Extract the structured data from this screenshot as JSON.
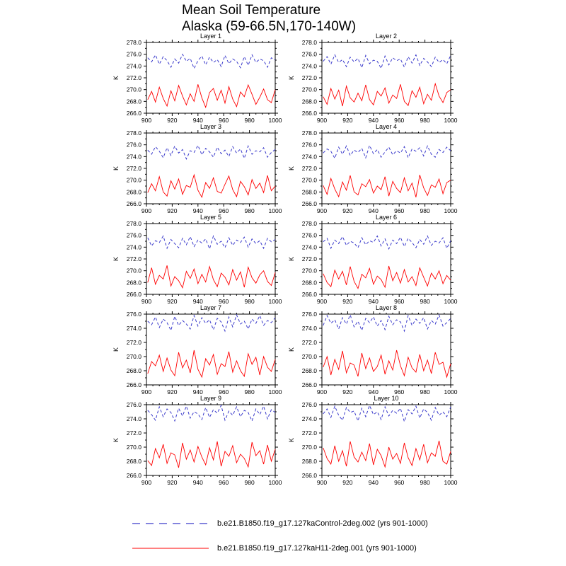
{
  "figure": {
    "title_line1": "Mean Soil Temperature",
    "title_line2": "Alaska (59-66.5N,170-140W)"
  },
  "legend": {
    "items": [
      {
        "label": "b.e21.B1850.f19_g17.127kaControl-2deg.002 (yrs 901-1000)",
        "color": "#3a3acb",
        "style": "dashed"
      },
      {
        "label": "b.e21.B1850.f19_g17.127kaH11-2deg.001 (yrs 901-1000)",
        "color": "#ff0000",
        "style": "solid"
      }
    ]
  },
  "chart_data": {
    "type": "line",
    "title": "Mean Soil Temperature, Alaska (59-66.5N,170-140W)",
    "xlabel": "",
    "ylabel": "K",
    "x_min": 900,
    "x_max": 1000,
    "x_ticks": [
      900,
      920,
      940,
      960,
      980,
      1000
    ],
    "x_minor_step": 5,
    "y_tick_step": 2,
    "y_minor_step": 1,
    "x_start": 901,
    "x_step": 3,
    "grid": false,
    "legend_position": "bottom",
    "series_meta": [
      {
        "key": "control",
        "name": "b.e21.B1850.f19_g17.127kaControl-2deg.002",
        "color": "#3a3acb",
        "dash": "4,3",
        "width": 1
      },
      {
        "key": "h11",
        "name": "b.e21.B1850.f19_g17.127kaH11-2deg.001",
        "color": "#ff0000",
        "dash": "",
        "width": 0.9
      }
    ],
    "panels": [
      {
        "title": "Layer 1",
        "ylim": [
          266,
          278
        ],
        "control": [
          275.4,
          274.7,
          275.9,
          274.3,
          275.6,
          274.9,
          273.8,
          275.2,
          274.5,
          276.0,
          274.8,
          275.3,
          273.6,
          274.9,
          275.7,
          274.2,
          275.5,
          274.6,
          275.1,
          273.9,
          275.8,
          274.4,
          275.2,
          274.8,
          273.7,
          275.6,
          274.1,
          275.9,
          274.6,
          275.2,
          274.9,
          273.8,
          275.4,
          275.0
        ],
        "h11": [
          268.3,
          269.7,
          267.9,
          270.4,
          268.5,
          267.2,
          269.8,
          268.1,
          270.7,
          268.9,
          267.4,
          269.3,
          268.0,
          270.9,
          268.6,
          267.0,
          269.5,
          270.2,
          268.2,
          269.9,
          267.7,
          270.5,
          268.4,
          267.1,
          269.6,
          268.8,
          270.8,
          269.2,
          267.5,
          268.7,
          270.1,
          268.3,
          267.8,
          270.0
        ]
      },
      {
        "title": "Layer 2",
        "ylim": [
          266,
          278
        ],
        "control": [
          274.8,
          275.6,
          274.3,
          275.9,
          274.6,
          275.1,
          273.9,
          275.5,
          274.7,
          275.3,
          273.7,
          275.8,
          274.4,
          275.0,
          274.8,
          273.6,
          275.7,
          274.2,
          275.4,
          274.9,
          275.2,
          273.8,
          275.6,
          274.5,
          275.9,
          274.1,
          275.3,
          274.7,
          273.9,
          275.5,
          274.6,
          275.1,
          274.4,
          275.8
        ],
        "h11": [
          268.8,
          267.5,
          270.2,
          268.4,
          269.9,
          267.2,
          270.6,
          268.6,
          267.9,
          269.4,
          268.1,
          270.8,
          268.3,
          267.4,
          269.7,
          268.9,
          270.3,
          267.7,
          269.1,
          268.5,
          270.9,
          268.0,
          267.3,
          269.8,
          268.7,
          270.4,
          267.6,
          269.2,
          268.2,
          271.0,
          268.9,
          267.8,
          269.5,
          270.0
        ]
      },
      {
        "title": "Layer 3",
        "ylim": [
          266,
          278
        ],
        "control": [
          275.1,
          274.4,
          275.7,
          274.9,
          273.8,
          275.5,
          274.2,
          275.8,
          274.6,
          275.2,
          273.6,
          275.0,
          274.7,
          275.9,
          274.3,
          275.4,
          274.8,
          273.9,
          275.6,
          274.5,
          275.1,
          274.0,
          275.7,
          274.6,
          275.3,
          273.7,
          275.8,
          274.4,
          275.0,
          274.8,
          275.5,
          273.9,
          274.7,
          275.2
        ],
        "h11": [
          267.9,
          269.4,
          268.2,
          270.6,
          268.0,
          267.3,
          269.9,
          268.5,
          270.2,
          267.6,
          269.1,
          268.8,
          270.9,
          268.3,
          267.1,
          269.6,
          268.6,
          270.4,
          268.1,
          267.8,
          269.3,
          270.7,
          268.4,
          267.2,
          269.8,
          268.9,
          267.5,
          270.1,
          268.6,
          269.5,
          267.9,
          270.8,
          268.2,
          269.0
        ]
      },
      {
        "title": "Layer 4",
        "ylim": [
          266,
          278
        ],
        "control": [
          274.6,
          275.3,
          274.9,
          273.7,
          275.6,
          274.4,
          275.8,
          274.2,
          275.1,
          274.7,
          275.4,
          273.8,
          275.9,
          274.5,
          275.2,
          273.9,
          274.8,
          275.6,
          274.3,
          275.0,
          274.6,
          275.7,
          273.8,
          275.3,
          274.9,
          275.5,
          274.1,
          275.8,
          274.4,
          273.9,
          275.2,
          274.7,
          275.6,
          275.0
        ],
        "h11": [
          269.1,
          267.6,
          270.3,
          268.5,
          267.2,
          269.7,
          268.3,
          270.8,
          268.0,
          267.5,
          269.4,
          268.9,
          270.1,
          267.8,
          269.0,
          268.4,
          270.6,
          267.3,
          269.8,
          268.6,
          267.9,
          270.4,
          268.2,
          269.5,
          267.1,
          270.9,
          268.7,
          267.4,
          269.2,
          268.8,
          270.2,
          267.7,
          269.6,
          270.0
        ]
      },
      {
        "title": "Layer 5",
        "ylim": [
          266,
          278
        ],
        "control": [
          275.6,
          274.2,
          275.1,
          274.8,
          275.9,
          273.8,
          275.3,
          274.6,
          273.9,
          275.5,
          274.4,
          275.8,
          274.1,
          275.2,
          274.7,
          275.4,
          273.7,
          275.9,
          274.5,
          275.0,
          273.9,
          275.6,
          274.3,
          275.2,
          274.8,
          275.7,
          274.0,
          275.4,
          274.6,
          275.1,
          273.8,
          275.5,
          274.9,
          275.3
        ],
        "h11": [
          268.0,
          270.5,
          267.7,
          269.2,
          268.6,
          270.9,
          267.4,
          269.0,
          268.3,
          267.1,
          269.9,
          268.7,
          270.3,
          267.8,
          269.4,
          268.1,
          270.7,
          268.5,
          267.3,
          269.6,
          268.9,
          267.6,
          270.2,
          268.4,
          269.8,
          267.2,
          270.6,
          268.8,
          267.9,
          269.3,
          270.0,
          268.2,
          267.5,
          269.7
        ]
      },
      {
        "title": "Layer 6",
        "ylim": [
          266,
          278
        ],
        "control": [
          274.9,
          275.5,
          273.8,
          275.2,
          274.6,
          275.8,
          274.3,
          275.0,
          274.7,
          273.9,
          275.6,
          274.4,
          275.1,
          274.8,
          275.9,
          274.2,
          275.4,
          273.7,
          275.2,
          274.6,
          275.7,
          274.1,
          275.5,
          274.8,
          273.9,
          275.3,
          274.5,
          275.9,
          274.3,
          275.0,
          274.7,
          275.6,
          273.8,
          275.1
        ],
        "h11": [
          269.5,
          268.0,
          267.3,
          270.1,
          268.6,
          269.9,
          267.6,
          270.7,
          268.2,
          267.0,
          269.4,
          268.8,
          270.4,
          267.7,
          269.1,
          268.5,
          267.2,
          270.8,
          268.3,
          269.7,
          267.9,
          270.2,
          268.1,
          269.0,
          267.5,
          270.5,
          268.9,
          267.4,
          269.6,
          268.6,
          270.0,
          267.8,
          269.2,
          268.4
        ]
      },
      {
        "title": "Layer 7",
        "ylim": [
          266,
          276
        ],
        "control": [
          275.0,
          274.5,
          275.6,
          274.1,
          275.3,
          274.8,
          273.7,
          275.7,
          274.4,
          275.1,
          274.6,
          273.9,
          275.8,
          274.3,
          275.5,
          274.7,
          275.2,
          273.8,
          275.4,
          274.9,
          273.6,
          275.6,
          274.2,
          275.9,
          274.6,
          275.0,
          273.9,
          275.3,
          274.7,
          275.8,
          274.4,
          275.1,
          274.8,
          275.5
        ],
        "h11": [
          267.6,
          269.3,
          268.7,
          270.2,
          267.9,
          269.8,
          268.1,
          267.3,
          270.6,
          268.4,
          269.5,
          267.7,
          270.9,
          268.2,
          267.1,
          269.7,
          268.8,
          270.3,
          267.5,
          269.0,
          268.6,
          270.7,
          267.8,
          269.4,
          268.0,
          267.2,
          270.4,
          268.9,
          269.9,
          267.4,
          270.0,
          268.5,
          267.9,
          269.6
        ]
      },
      {
        "title": "Layer 8",
        "ylim": [
          266,
          276
        ],
        "control": [
          274.4,
          275.8,
          274.7,
          275.2,
          273.9,
          275.5,
          274.6,
          275.9,
          274.2,
          275.0,
          273.7,
          275.4,
          274.8,
          275.6,
          274.3,
          275.1,
          273.8,
          275.7,
          274.5,
          275.2,
          274.9,
          273.6,
          275.8,
          274.4,
          275.3,
          274.7,
          275.5,
          273.9,
          275.1,
          274.6,
          275.9,
          274.3,
          274.8,
          275.4
        ],
        "h11": [
          268.5,
          270.0,
          267.4,
          269.6,
          268.2,
          270.8,
          267.7,
          269.1,
          268.8,
          267.2,
          270.5,
          268.3,
          269.8,
          267.9,
          268.6,
          270.2,
          267.5,
          269.4,
          268.1,
          270.9,
          268.7,
          267.3,
          269.9,
          268.4,
          267.8,
          270.3,
          268.0,
          269.5,
          267.6,
          270.6,
          268.9,
          269.2,
          267.1,
          269.0
        ]
      },
      {
        "title": "Layer 9",
        "ylim": [
          266,
          276
        ],
        "control": [
          275.2,
          274.6,
          273.8,
          275.7,
          274.3,
          275.4,
          274.9,
          273.7,
          275.5,
          274.4,
          275.8,
          274.1,
          275.0,
          274.7,
          273.9,
          275.6,
          274.2,
          275.3,
          274.8,
          275.9,
          273.8,
          275.1,
          274.5,
          275.7,
          274.3,
          275.2,
          274.9,
          273.7,
          275.4,
          274.6,
          275.8,
          274.0,
          275.3,
          274.9
        ],
        "h11": [
          268.1,
          267.4,
          269.8,
          268.5,
          270.4,
          267.7,
          269.2,
          268.9,
          267.1,
          270.6,
          268.3,
          269.6,
          267.9,
          270.1,
          268.6,
          267.5,
          269.9,
          268.2,
          270.8,
          267.3,
          269.4,
          268.7,
          270.2,
          267.8,
          269.0,
          268.4,
          267.2,
          270.7,
          268.8,
          269.5,
          267.6,
          270.3,
          268.0,
          269.7
        ]
      },
      {
        "title": "Layer 10",
        "ylim": [
          266,
          276
        ],
        "control": [
          274.7,
          275.4,
          274.2,
          275.8,
          274.5,
          273.8,
          275.6,
          274.9,
          275.1,
          273.7,
          275.5,
          274.3,
          275.9,
          274.6,
          275.0,
          273.9,
          275.7,
          274.4,
          275.2,
          274.8,
          275.5,
          273.6,
          275.3,
          274.7,
          275.8,
          274.1,
          275.4,
          274.9,
          273.8,
          275.6,
          274.5,
          275.0,
          274.3,
          275.7
        ],
        "h11": [
          269.9,
          268.4,
          267.6,
          270.2,
          268.0,
          269.5,
          267.3,
          270.8,
          268.6,
          267.9,
          269.3,
          268.1,
          270.5,
          267.5,
          269.7,
          268.8,
          267.2,
          270.0,
          268.3,
          269.1,
          267.7,
          270.6,
          268.5,
          267.4,
          269.8,
          268.2,
          270.4,
          267.8,
          269.2,
          268.7,
          270.9,
          268.0,
          267.6,
          269.4
        ]
      }
    ]
  }
}
